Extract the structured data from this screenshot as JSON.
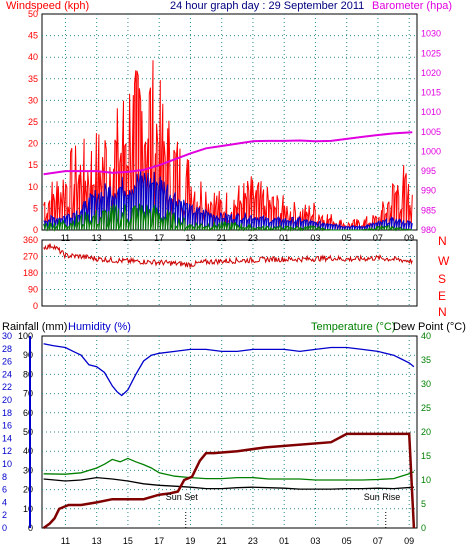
{
  "header": {
    "left": "Windspeed (kph)",
    "center": "24 hour graph day : 29 September 2011",
    "right": "Barometer (hpa)"
  },
  "footer": {
    "rainfall": "Rainfall (mm)",
    "humidity": "Humidity (%)",
    "temperature": "Temperature (°C)",
    "dewpoint": "Dew Point (°C)",
    "sunset": "Sun Set",
    "sunrise": "Sun Rise"
  },
  "colors": {
    "wind": "#ff0000",
    "gust_avg": "#0000cc",
    "wind_avg": "#008000",
    "barometer": "#e000e0",
    "direction": "#cc0000",
    "humidity": "#0000cc",
    "temperature": "#008000",
    "dewpoint": "#000000",
    "rainfall": "#800000",
    "axis_rain": "#0000cc",
    "axis_temp": "#008000"
  },
  "chart_data": [
    {
      "type": "line",
      "title": "24 hour graph day : 29 September 2011",
      "x_ticks": [
        "11",
        "13",
        "15",
        "17",
        "19",
        "21",
        "23",
        "01",
        "03",
        "05",
        "07",
        "09"
      ],
      "xlim": [
        9.5,
        33.5
      ],
      "y_left": {
        "label": "Windspeed (kph)",
        "ticks": [
          0,
          5,
          10,
          15,
          20,
          25,
          30,
          35,
          40,
          45,
          50
        ],
        "lim": [
          0,
          50
        ]
      },
      "y_right": {
        "label": "Barometer (hpa)",
        "ticks": [
          980,
          985,
          990,
          995,
          1000,
          1005,
          1010,
          1015,
          1020,
          1025,
          1030
        ],
        "lim": [
          980,
          1035
        ]
      },
      "series": [
        {
          "name": "Barometer (hpa)",
          "axis": "right",
          "x": [
            9.6,
            11,
            12,
            13,
            14,
            15,
            16,
            17,
            18,
            19,
            20,
            21,
            22,
            23,
            24,
            25,
            26,
            27,
            28,
            29,
            30,
            31,
            32,
            33.2
          ],
          "values": [
            994.2,
            995,
            995,
            995,
            994.6,
            994.8,
            995.3,
            996.5,
            998,
            999.5,
            1000.8,
            1001.4,
            1002,
            1002.6,
            1002.7,
            1002.7,
            1002.8,
            1002.6,
            1002.7,
            1003.2,
            1003.7,
            1004.2,
            1004.6,
            1004.9
          ]
        },
        {
          "name": "Windspeed (kph)",
          "axis": "left",
          "x": [
            9.6,
            10.5,
            11.5,
            12.5,
            13.5,
            14.5,
            15,
            15.5,
            16,
            16.5,
            17,
            17.5,
            18,
            18.5,
            19,
            19.5,
            20,
            21,
            22,
            23,
            24,
            25,
            26,
            27,
            28,
            29,
            30,
            31,
            32,
            32.5,
            33.2
          ],
          "values": [
            10,
            14,
            20,
            22,
            26,
            30,
            41,
            38,
            46,
            42,
            36,
            29,
            24,
            21,
            18,
            14,
            13,
            9,
            11,
            13,
            10,
            8,
            6,
            7,
            4,
            2,
            3,
            4,
            13,
            18,
            9
          ]
        },
        {
          "name": "Gust average",
          "axis": "left",
          "x": [
            9.6,
            11,
            12,
            13,
            14,
            15,
            16,
            17,
            18,
            19,
            20,
            21,
            22,
            23,
            24,
            25,
            26,
            27,
            28,
            29,
            30,
            31,
            32,
            33.2
          ],
          "values": [
            3,
            4,
            6,
            10,
            12,
            13,
            15,
            14,
            10,
            6,
            5,
            4,
            4,
            4,
            3,
            3,
            3,
            2,
            2,
            1,
            1,
            2,
            3,
            2
          ]
        },
        {
          "name": "Wind average",
          "axis": "left",
          "x": [
            9.6,
            11,
            12,
            13,
            14,
            15,
            16,
            17,
            18,
            19,
            20,
            21,
            22,
            23,
            24,
            25,
            26,
            27,
            28,
            29,
            30,
            31,
            32,
            33.2
          ],
          "values": [
            2,
            3,
            4,
            5,
            6,
            7,
            7,
            6,
            4,
            2,
            2,
            2,
            2,
            1,
            1,
            1,
            1,
            1,
            0,
            0,
            0,
            1,
            1,
            0
          ]
        }
      ]
    },
    {
      "type": "line",
      "y_left": {
        "ticks": [
          0,
          90,
          180,
          270,
          360
        ],
        "lim": [
          0,
          360
        ]
      },
      "y_right_labels": [
        "N",
        "W",
        "S",
        "E",
        "N"
      ],
      "series": [
        {
          "name": "Wind direction",
          "axis": "left",
          "x": [
            9.6,
            10.2,
            11,
            12,
            13,
            14,
            15,
            16,
            17,
            18,
            19,
            20,
            21,
            22,
            23,
            24,
            25,
            26,
            27,
            28,
            29,
            30,
            31,
            32,
            33.2
          ],
          "values": [
            320,
            330,
            275,
            270,
            258,
            250,
            245,
            242,
            238,
            232,
            225,
            240,
            245,
            248,
            250,
            255,
            255,
            255,
            258,
            262,
            255,
            258,
            262,
            255,
            245
          ]
        }
      ]
    },
    {
      "type": "line",
      "x_ticks": [
        "11",
        "13",
        "15",
        "17",
        "19",
        "21",
        "23",
        "01",
        "03",
        "05",
        "07",
        "09"
      ],
      "xlim": [
        9.5,
        33.5
      ],
      "y_left_outer": {
        "label": "Rainfall (mm)",
        "ticks": [
          0,
          2,
          4,
          6,
          8,
          10,
          12,
          14,
          16,
          18,
          20,
          22,
          24,
          26,
          28,
          30
        ],
        "lim": [
          0,
          30
        ]
      },
      "y_left_inner": {
        "label": "Humidity (%)",
        "ticks": [
          0,
          10,
          20,
          30,
          40,
          50,
          60,
          70,
          80,
          90,
          100
        ],
        "lim": [
          0,
          100
        ]
      },
      "y_right": {
        "label": "Temperature (°C)",
        "ticks": [
          0,
          5,
          10,
          15,
          20,
          25,
          30,
          35,
          40
        ],
        "lim": [
          0,
          40
        ]
      },
      "series": [
        {
          "name": "Humidity (%)",
          "axis": "humidity",
          "x": [
            9.6,
            10.2,
            11,
            11.5,
            12,
            12.5,
            13,
            13.5,
            14,
            14.3,
            14.6,
            15,
            15.5,
            16,
            16.5,
            17,
            18,
            19,
            20,
            21,
            22,
            23,
            24,
            25,
            26,
            27,
            28,
            29,
            30,
            31,
            32,
            32.5,
            33,
            33.3
          ],
          "values": [
            96,
            95,
            94,
            92,
            90,
            85,
            84,
            81,
            74,
            71,
            69,
            72,
            80,
            87,
            90,
            91,
            92,
            93,
            93,
            92,
            92,
            93,
            93,
            93,
            92,
            93,
            94,
            94,
            93,
            92,
            90,
            88,
            86,
            84
          ]
        },
        {
          "name": "Temperature (°C)",
          "axis": "temperature",
          "x": [
            9.6,
            11,
            12,
            13,
            13.5,
            14,
            14.5,
            15,
            15.5,
            16,
            16.5,
            17,
            18,
            19,
            20,
            21,
            22,
            23,
            24,
            25,
            26,
            27,
            28,
            29,
            30,
            31,
            32,
            33,
            33.3
          ],
          "values": [
            11.3,
            11.2,
            11.5,
            12.5,
            13.3,
            14.3,
            13.8,
            14.5,
            13.8,
            13.2,
            12.5,
            11.5,
            10.8,
            10.5,
            10.3,
            10.3,
            10.5,
            10.5,
            10.2,
            10.2,
            10.2,
            10.0,
            10.0,
            10.0,
            10.0,
            10.1,
            10.3,
            11.3,
            11.7
          ]
        },
        {
          "name": "Dew Point (°C)",
          "axis": "temperature",
          "x": [
            9.6,
            11,
            12,
            13,
            14,
            15,
            16,
            17,
            18,
            19,
            20,
            21,
            22,
            23,
            24,
            25,
            26,
            27,
            28,
            29,
            30,
            31,
            32,
            33.3
          ],
          "values": [
            10.2,
            9.8,
            10.0,
            10.5,
            10.2,
            9.8,
            9.2,
            8.9,
            8.7,
            8.5,
            8.2,
            8.2,
            8.4,
            8.5,
            8.4,
            8.3,
            8.1,
            8.1,
            8.1,
            8.2,
            8.2,
            8.3,
            8.2,
            8.5
          ]
        },
        {
          "name": "Rainfall (mm)",
          "axis": "rainfall",
          "x": [
            9.6,
            10.0,
            10.3,
            10.6,
            11.2,
            12,
            13,
            14,
            15,
            16,
            17,
            17.7,
            18.2,
            18.6,
            19.1,
            19.6,
            20,
            20.5,
            22,
            23.8,
            28,
            29,
            31,
            33,
            33.3
          ],
          "values": [
            0,
            0.7,
            1.5,
            3,
            3.6,
            3.6,
            4,
            4.5,
            4.5,
            4.5,
            5.2,
            5.4,
            5.7,
            7.5,
            8,
            10.5,
            11.7,
            11.7,
            12,
            12.6,
            13.4,
            14.7,
            14.7,
            14.7,
            0
          ]
        }
      ],
      "annotations": [
        {
          "text": "Sun Set",
          "x": 18.7
        },
        {
          "text": "Sun Rise",
          "x": 31.5
        }
      ]
    }
  ]
}
